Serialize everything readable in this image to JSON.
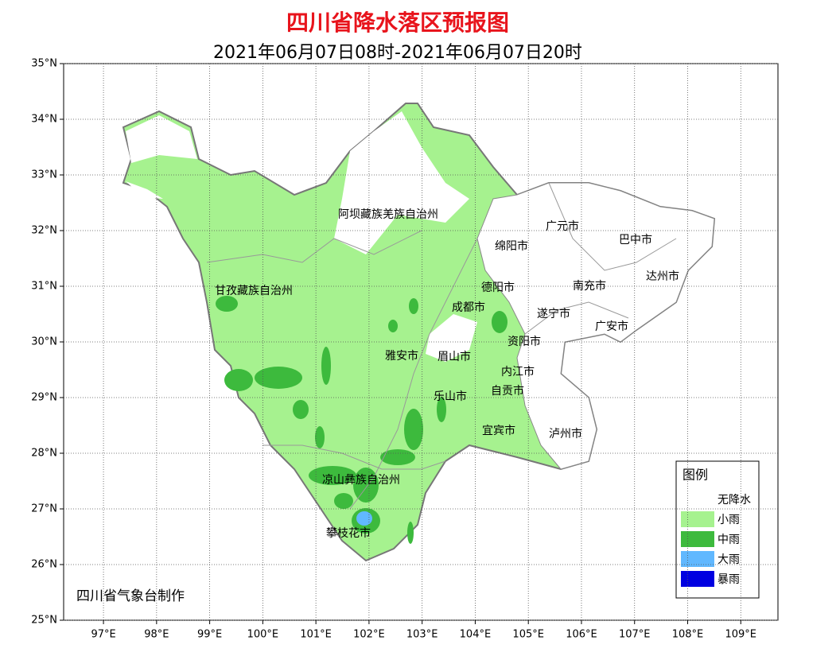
{
  "map": {
    "title": "四川省降水落区预报图",
    "subtitle": "2021年06月07日08时-2021年06月07日20时",
    "credit": "四川省气象台制作",
    "xlim": [
      96.25,
      109.7
    ],
    "ylim": [
      25,
      35
    ],
    "grid": true,
    "xticks": [
      {
        "value": 97,
        "label": "97°E"
      },
      {
        "value": 98,
        "label": "98°E"
      },
      {
        "value": 99,
        "label": "99°E"
      },
      {
        "value": 100,
        "label": "100°E"
      },
      {
        "value": 101,
        "label": "101°E"
      },
      {
        "value": 102,
        "label": "102°E"
      },
      {
        "value": 103,
        "label": "103°E"
      },
      {
        "value": 104,
        "label": "104°E"
      },
      {
        "value": 105,
        "label": "105°E"
      },
      {
        "value": 106,
        "label": "106°E"
      },
      {
        "value": 107,
        "label": "107°E"
      },
      {
        "value": 108,
        "label": "108°E"
      },
      {
        "value": 109,
        "label": "109°E"
      }
    ],
    "yticks": [
      {
        "value": 25,
        "label": "25°N"
      },
      {
        "value": 26,
        "label": "26°N"
      },
      {
        "value": 27,
        "label": "27°N"
      },
      {
        "value": 28,
        "label": "28°N"
      },
      {
        "value": 29,
        "label": "29°N"
      },
      {
        "value": 30,
        "label": "30°N"
      },
      {
        "value": 31,
        "label": "31°N"
      },
      {
        "value": 32,
        "label": "32°N"
      },
      {
        "value": 33,
        "label": "33°N"
      },
      {
        "value": 34,
        "label": "34°N"
      },
      {
        "value": 35,
        "label": "35°N"
      }
    ],
    "regions": [
      "阿坝藏族羌族自治州",
      "广元市",
      "巴中市",
      "绵阳市",
      "达州市",
      "德阳市",
      "南充市",
      "甘孜藏族自治州",
      "成都市",
      "遂宁市",
      "广安市",
      "资阳市",
      "雅安市",
      "眉山市",
      "内江市",
      "自贡市",
      "乐山市",
      "宜宾市",
      "泸州市",
      "凉山彝族自治州",
      "攀枝花市"
    ],
    "legend": {
      "title": "图例",
      "items": [
        {
          "name": "无降水",
          "color": "#ffffff"
        },
        {
          "name": "小雨",
          "color": "#a6f28f"
        },
        {
          "name": "中雨",
          "color": "#3dba3d"
        },
        {
          "name": "大雨",
          "color": "#61b8ff"
        },
        {
          "name": "暴雨",
          "color": "#0000e1"
        }
      ]
    }
  }
}
